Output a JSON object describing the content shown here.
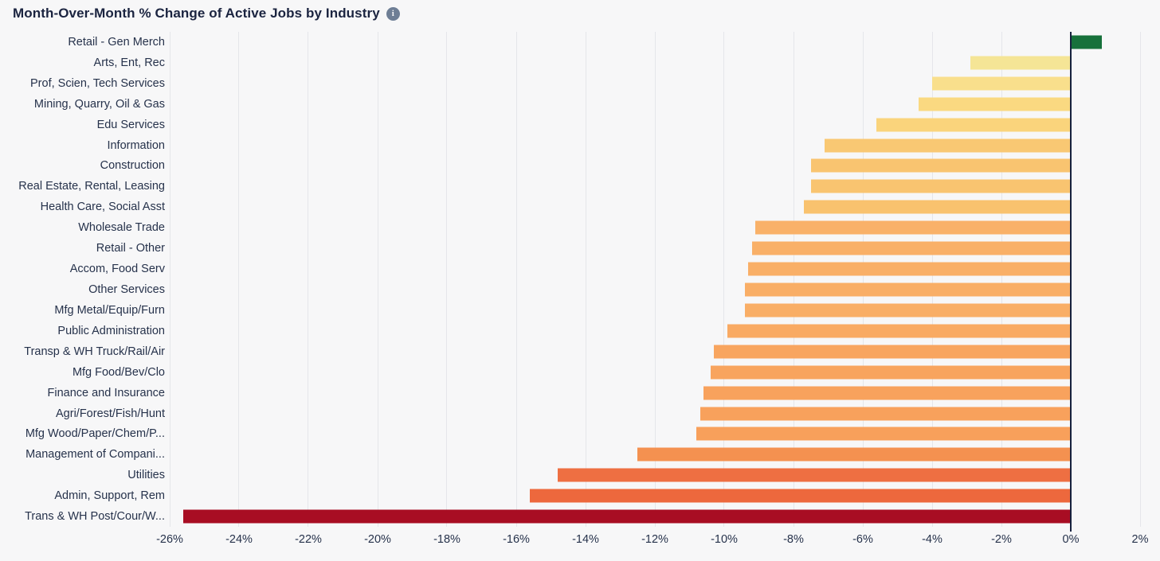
{
  "title": "Month-Over-Month % Change of Active Jobs by Industry",
  "icons": {
    "info": "info-circle-icon"
  },
  "colors": {
    "background": "#F7F7F8",
    "grid_line": "#E5E6EA",
    "zero_axis_line": "#16213E",
    "text": "#26324B",
    "title_text": "#1B2440",
    "info_icon_bg": "#6E7E95"
  },
  "chart_data": {
    "type": "bar",
    "orientation": "horizontal",
    "title": "Month-Over-Month % Change of Active Jobs by Industry",
    "xlabel": "",
    "ylabel": "",
    "unit": "%",
    "grid": true,
    "xlim": [
      -26,
      2
    ],
    "x_tick_labels": [
      "-26%",
      "-24%",
      "-22%",
      "-20%",
      "-18%",
      "-16%",
      "-14%",
      "-12%",
      "-10%",
      "-8%",
      "-6%",
      "-4%",
      "-2%",
      "0%",
      "2%"
    ],
    "x_tick_values": [
      -26,
      -24,
      -22,
      -20,
      -18,
      -16,
      -14,
      -12,
      -10,
      -8,
      -6,
      -4,
      -2,
      0,
      2
    ],
    "categories": [
      "Retail - Gen Merch",
      "Arts, Ent, Rec",
      "Prof, Scien, Tech Services",
      "Mining, Quarry, Oil & Gas",
      "Edu Services",
      "Information",
      "Construction",
      "Real Estate, Rental, Leasing",
      "Health Care, Social Asst",
      "Wholesale Trade",
      "Retail - Other",
      "Accom, Food Serv",
      "Other Services",
      "Mfg Metal/Equip/Furn",
      "Public Administration",
      "Transp & WH Truck/Rail/Air",
      "Mfg Food/Bev/Clo",
      "Finance and Insurance",
      "Agri/Forest/Fish/Hunt",
      "Mfg Wood/Paper/Chem/P...",
      "Management of Compani...",
      "Utilities",
      "Admin, Support, Rem",
      "Trans & WH Post/Cour/W..."
    ],
    "values": [
      0.9,
      -2.9,
      -4.0,
      -4.4,
      -5.6,
      -7.1,
      -7.5,
      -7.5,
      -7.7,
      -9.1,
      -9.2,
      -9.3,
      -9.4,
      -9.4,
      -9.9,
      -10.3,
      -10.4,
      -10.6,
      -10.7,
      -10.8,
      -12.5,
      -14.8,
      -15.6,
      -25.6
    ],
    "bar_colors": [
      "#17713B",
      "#F5E596",
      "#F9DF8C",
      "#FAD981",
      "#FAD47C",
      "#F9C873",
      "#F9C470",
      "#F9C470",
      "#F9C26E",
      "#F9B169",
      "#F9B068",
      "#F9AF67",
      "#F9AE66",
      "#F9AE66",
      "#F9AA63",
      "#F8A55F",
      "#F8A45E",
      "#F8A25D",
      "#F8A15C",
      "#F8A05B",
      "#F49150",
      "#EE6F42",
      "#ED683D",
      "#A80D23"
    ]
  }
}
